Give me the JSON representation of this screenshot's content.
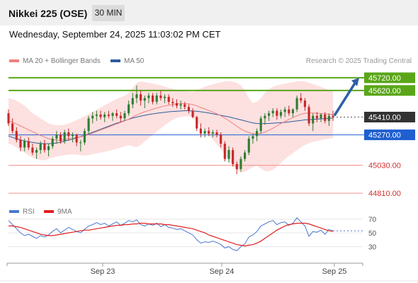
{
  "header": {
    "title": "Nikkei 225 (OSE)",
    "timeframe": "30 MIN"
  },
  "datetime": "Wednesday, September 24, 2025 11:03:02 PM CET",
  "legend": {
    "ma20": "MA 20 + Bollinger Bands",
    "ma50": "MA 50",
    "ma20_color": "#f08080",
    "ma50_color": "#2e5c9a"
  },
  "credit": "Research © 2025 Trading Central",
  "rsi_legend": {
    "rsi": "RSI",
    "ma9": "9MA",
    "rsi_color": "#4a78d0",
    "ma9_color": "#e02020"
  },
  "colors": {
    "up": "#2e7d32",
    "down": "#c62828",
    "resistance": "#5aa618",
    "pivot": "#1f5fd0",
    "support": "#f4a0a0",
    "arrow": "#2c5fa6",
    "band_fill": "#fde0e0"
  },
  "chart_data": [
    {
      "type": "candlestick",
      "title": "Nikkei 225 (OSE)",
      "x_ticks": [
        "Sep 23",
        "Sep 24",
        "Sep 25"
      ],
      "ylim": [
        44760,
        45820
      ],
      "last_price": 45410,
      "levels": [
        {
          "label": "45720.00",
          "value": 45720,
          "kind": "resistance"
        },
        {
          "label": "45620.00",
          "value": 45620,
          "kind": "resistance"
        },
        {
          "label": "45410.00",
          "value": 45410,
          "kind": "last"
        },
        {
          "label": "45270.00",
          "value": 45270,
          "kind": "pivot"
        },
        {
          "label": "45030.00",
          "value": 45030,
          "kind": "support"
        },
        {
          "label": "44810.00",
          "value": 44810,
          "kind": "support"
        }
      ],
      "ohlc": [
        [
          45440,
          45470,
          45340,
          45360
        ],
        [
          45360,
          45400,
          45280,
          45300
        ],
        [
          45300,
          45330,
          45210,
          45230
        ],
        [
          45230,
          45260,
          45140,
          45170
        ],
        [
          45170,
          45240,
          45140,
          45220
        ],
        [
          45220,
          45250,
          45150,
          45170
        ],
        [
          45170,
          45200,
          45110,
          45130
        ],
        [
          45130,
          45170,
          45080,
          45150
        ],
        [
          45150,
          45220,
          45120,
          45200
        ],
        [
          45200,
          45230,
          45130,
          45150
        ],
        [
          45150,
          45200,
          45100,
          45180
        ],
        [
          45180,
          45260,
          45160,
          45240
        ],
        [
          45240,
          45300,
          45200,
          45270
        ],
        [
          45270,
          45290,
          45200,
          45220
        ],
        [
          45220,
          45310,
          45200,
          45290
        ],
        [
          45290,
          45320,
          45230,
          45260
        ],
        [
          45260,
          45290,
          45210,
          45270
        ],
        [
          45270,
          45280,
          45180,
          45210
        ],
        [
          45210,
          45230,
          45140,
          45210
        ],
        [
          45210,
          45320,
          45190,
          45300
        ],
        [
          45300,
          45420,
          45280,
          45400
        ],
        [
          45400,
          45450,
          45360,
          45420
        ],
        [
          45420,
          45460,
          45380,
          45430
        ],
        [
          45430,
          45460,
          45390,
          45410
        ],
        [
          45410,
          45450,
          45370,
          45430
        ],
        [
          45430,
          45460,
          45400,
          45420
        ],
        [
          45420,
          45450,
          45380,
          45440
        ],
        [
          45440,
          45470,
          45400,
          45420
        ],
        [
          45420,
          45450,
          45370,
          45400
        ],
        [
          45400,
          45460,
          45380,
          45440
        ],
        [
          45440,
          45540,
          45420,
          45510
        ],
        [
          45510,
          45600,
          45480,
          45560
        ],
        [
          45560,
          45660,
          45520,
          45590
        ],
        [
          45590,
          45620,
          45500,
          45540
        ],
        [
          45540,
          45580,
          45480,
          45560
        ],
        [
          45560,
          45600,
          45520,
          45580
        ],
        [
          45580,
          45600,
          45510,
          45530
        ],
        [
          45530,
          45600,
          45510,
          45580
        ],
        [
          45580,
          45620,
          45540,
          45560
        ],
        [
          45560,
          45590,
          45520,
          45570
        ],
        [
          45570,
          45590,
          45510,
          45530
        ],
        [
          45530,
          45560,
          45490,
          45520
        ],
        [
          45520,
          45550,
          45480,
          45500
        ],
        [
          45500,
          45540,
          45470,
          45510
        ],
        [
          45510,
          45530,
          45470,
          45490
        ],
        [
          45490,
          45510,
          45440,
          45460
        ],
        [
          45460,
          45480,
          45400,
          45410
        ],
        [
          45410,
          45420,
          45300,
          45320
        ],
        [
          45320,
          45360,
          45250,
          45280
        ],
        [
          45280,
          45320,
          45250,
          45300
        ],
        [
          45300,
          45330,
          45260,
          45280
        ],
        [
          45280,
          45310,
          45250,
          45290
        ],
        [
          45290,
          45310,
          45250,
          45270
        ],
        [
          45270,
          45290,
          45170,
          45200
        ],
        [
          45200,
          45220,
          45060,
          45080
        ],
        [
          45080,
          45180,
          45050,
          45150
        ],
        [
          45150,
          45170,
          45020,
          45040
        ],
        [
          45040,
          45060,
          44960,
          45000
        ],
        [
          45000,
          45100,
          44980,
          45080
        ],
        [
          45080,
          45150,
          45060,
          45130
        ],
        [
          45130,
          45260,
          45110,
          45240
        ],
        [
          45240,
          45280,
          45200,
          45260
        ],
        [
          45260,
          45320,
          45220,
          45300
        ],
        [
          45300,
          45420,
          45280,
          45400
        ],
        [
          45400,
          45440,
          45350,
          45420
        ],
        [
          45420,
          45460,
          45380,
          45440
        ],
        [
          45440,
          45480,
          45410,
          45460
        ],
        [
          45460,
          45480,
          45390,
          45420
        ],
        [
          45420,
          45470,
          45400,
          45450
        ],
        [
          45450,
          45490,
          45410,
          45470
        ],
        [
          45470,
          45500,
          45420,
          45440
        ],
        [
          45440,
          45480,
          45410,
          45470
        ],
        [
          45470,
          45580,
          45450,
          45560
        ],
        [
          45560,
          45600,
          45520,
          45540
        ],
        [
          45540,
          45560,
          45460,
          45490
        ],
        [
          45490,
          45510,
          45340,
          45360
        ],
        [
          45360,
          45440,
          45300,
          45420
        ],
        [
          45420,
          45450,
          45370,
          45400
        ],
        [
          45400,
          45440,
          45370,
          45430
        ],
        [
          45430,
          45450,
          45360,
          45380
        ],
        [
          45380,
          45440,
          45340,
          45420
        ],
        [
          45420,
          45460,
          45380,
          45410
        ]
      ],
      "ma20": [
        45380,
        45370,
        45355,
        45340,
        45325,
        45310,
        45295,
        45280,
        45265,
        45252,
        45240,
        45232,
        45228,
        45228,
        45232,
        45238,
        45244,
        45250,
        45254,
        45262,
        45272,
        45284,
        45296,
        45308,
        45320,
        45332,
        45344,
        45356,
        45368,
        45380,
        45394,
        45410,
        45426,
        45440,
        45452,
        45462,
        45472,
        45482,
        45490,
        45498,
        45504,
        45510,
        45514,
        45516,
        45516,
        45514,
        45508,
        45498,
        45486,
        45474,
        45462,
        45450,
        45436,
        45420,
        45402,
        45382,
        45360,
        45338,
        45316,
        45300,
        45288,
        45280,
        45278,
        45282,
        45292,
        45306,
        45322,
        45340,
        45358,
        45376,
        45392,
        45406,
        45420,
        45432,
        45440,
        45442,
        45442,
        45440,
        45438,
        45436,
        45432,
        45428
      ],
      "ma50": [
        45260,
        45250,
        45240,
        45230,
        45222,
        45215,
        45210,
        45206,
        45202,
        45200,
        45200,
        45202,
        45206,
        45212,
        45220,
        45228,
        45236,
        45246,
        45256,
        45266,
        45278,
        45290,
        45302,
        45314,
        45326,
        45338,
        45350,
        45362,
        45372,
        45382,
        45392,
        45402,
        45410,
        45418,
        45424,
        45430,
        45435,
        45440,
        45444,
        45448,
        45452,
        45454,
        45456,
        45458,
        45460,
        45460,
        45458,
        45456,
        45452,
        45448,
        45442,
        45436,
        45430,
        45424,
        45418,
        45412,
        45404,
        45396,
        45388,
        45380,
        45372,
        45364,
        45360,
        45358,
        45358,
        45360,
        45362,
        45364,
        45366,
        45368,
        45372,
        45376,
        45380,
        45384,
        45388,
        45390,
        45392,
        45394,
        45396,
        45398,
        45400,
        45402
      ],
      "bb_upper": [
        45560,
        45550,
        45540,
        45520,
        45500,
        45470,
        45440,
        45420,
        45400,
        45380,
        45360,
        45350,
        45345,
        45345,
        45350,
        45360,
        45372,
        45386,
        45400,
        45416,
        45432,
        45450,
        45468,
        45486,
        45504,
        45520,
        45536,
        45552,
        45566,
        45578,
        45600,
        45640,
        45680,
        45690,
        45686,
        45680,
        45674,
        45668,
        45660,
        45650,
        45640,
        45632,
        45626,
        45620,
        45616,
        45612,
        45608,
        45620,
        45636,
        45650,
        45660,
        45668,
        45676,
        45684,
        45690,
        45694,
        45690,
        45680,
        45660,
        45620,
        45560,
        45520,
        45530,
        45560,
        45600,
        45630,
        45650,
        45660,
        45668,
        45674,
        45680,
        45686,
        45690,
        45694,
        45690,
        45680,
        45670,
        45660,
        45648,
        45636,
        45624,
        45612
      ],
      "bb_lower": [
        45200,
        45190,
        45170,
        45150,
        45130,
        45110,
        45090,
        45080,
        45070,
        45070,
        45080,
        45090,
        45100,
        45106,
        45110,
        45114,
        45116,
        45114,
        45110,
        45106,
        45110,
        45118,
        45124,
        45130,
        45136,
        45144,
        45152,
        45160,
        45170,
        45180,
        45188,
        45180,
        45172,
        45190,
        45218,
        45244,
        45270,
        45296,
        45320,
        45346,
        45368,
        45388,
        45402,
        45412,
        45416,
        45416,
        45408,
        45376,
        45336,
        45298,
        45264,
        45232,
        45196,
        45156,
        45114,
        45070,
        45030,
        44996,
        44972,
        44980,
        44996,
        45016,
        45026,
        45004,
        44984,
        44982,
        44994,
        45020,
        45048,
        45078,
        45104,
        45126,
        45150,
        45170,
        45190,
        45204,
        45214,
        45220,
        45228,
        45236,
        45240,
        45244
      ]
    },
    {
      "type": "line",
      "title": "RSI",
      "x_ticks": [
        "Sep 23",
        "Sep 24",
        "Sep 25"
      ],
      "ylim": [
        10,
        80
      ],
      "y_ticks": [
        70,
        50,
        30
      ],
      "series": [
        {
          "name": "RSI",
          "values": [
            68,
            62,
            56,
            50,
            46,
            48,
            45,
            42,
            46,
            44,
            47,
            52,
            56,
            50,
            54,
            58,
            55,
            52,
            50,
            55,
            60,
            62,
            65,
            62,
            64,
            60,
            63,
            66,
            61,
            64,
            68,
            66,
            69,
            62,
            60,
            63,
            61,
            64,
            59,
            62,
            58,
            57,
            55,
            56,
            53,
            50,
            47,
            40,
            35,
            37,
            36,
            38,
            36,
            33,
            28,
            30,
            26,
            24,
            30,
            34,
            44,
            47,
            52,
            60,
            63,
            66,
            68,
            62,
            65,
            66,
            61,
            64,
            72,
            66,
            60,
            45,
            52,
            51,
            54,
            48,
            55,
            53
          ]
        },
        {
          "name": "9MA",
          "values": [
            60,
            60,
            59,
            58,
            56,
            54,
            52,
            50,
            48,
            47,
            46,
            46,
            47,
            48,
            49,
            50,
            51,
            52,
            53,
            54,
            54,
            55,
            56,
            57,
            58,
            59,
            60,
            61,
            61,
            62,
            62,
            63,
            63,
            64,
            64,
            63,
            63,
            63,
            63,
            62,
            62,
            61,
            60,
            59,
            58,
            57,
            56,
            54,
            52,
            50,
            47,
            45,
            43,
            41,
            39,
            37,
            35,
            33,
            32,
            31,
            32,
            33,
            35,
            38,
            42,
            46,
            50,
            54,
            57,
            60,
            62,
            63,
            64,
            64,
            64,
            63,
            61,
            59,
            57,
            55,
            53,
            52
          ]
        }
      ]
    }
  ]
}
